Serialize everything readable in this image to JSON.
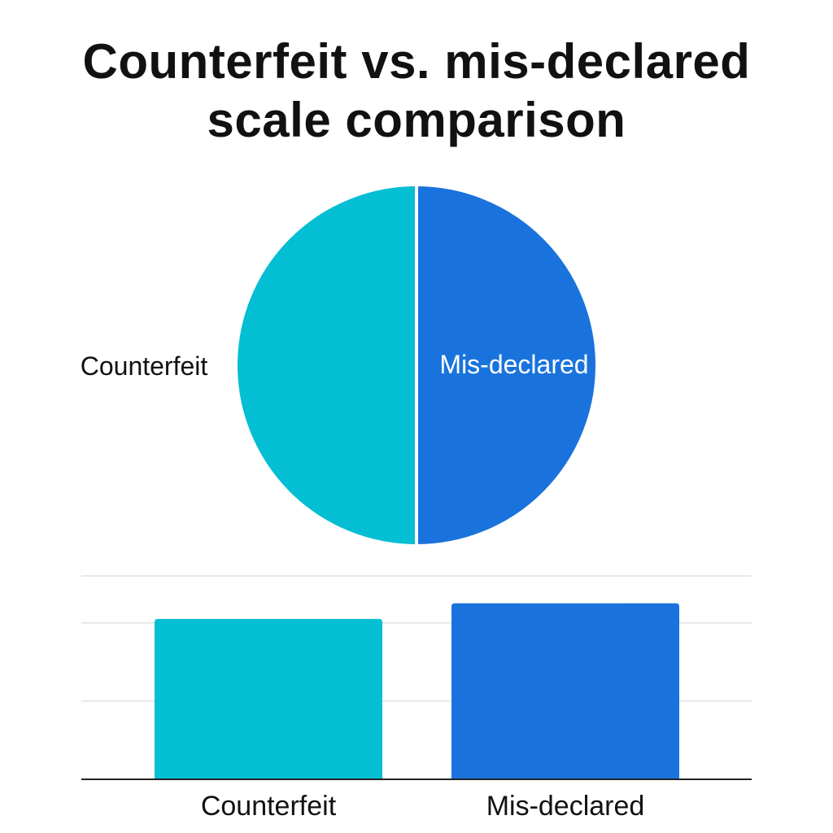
{
  "title": {
    "line1": "Counterfeit vs. mis-declared",
    "line2": "scale comparison"
  },
  "colors": {
    "counterfeit": "#04BED3",
    "mis_declared": "#1A73DD",
    "gridline": "#E2E2E2",
    "baseline": "#222222",
    "slice_border": "#FFFFFF"
  },
  "chart_data": [
    {
      "type": "pie",
      "title": "",
      "labels": [
        "Counterfeit",
        "Mis-declared"
      ],
      "values": [
        50,
        50
      ],
      "label_colors": [
        "#111111",
        "#FFFFFF"
      ]
    },
    {
      "type": "bar",
      "title": "",
      "xlabel": "",
      "ylabel": "",
      "categories": [
        "Counterfeit",
        "Mis-declared"
      ],
      "values": [
        2.05,
        2.25
      ],
      "ylim": [
        0,
        2.6
      ],
      "gridlines": [
        1,
        2,
        2.6
      ],
      "grid": true
    }
  ]
}
